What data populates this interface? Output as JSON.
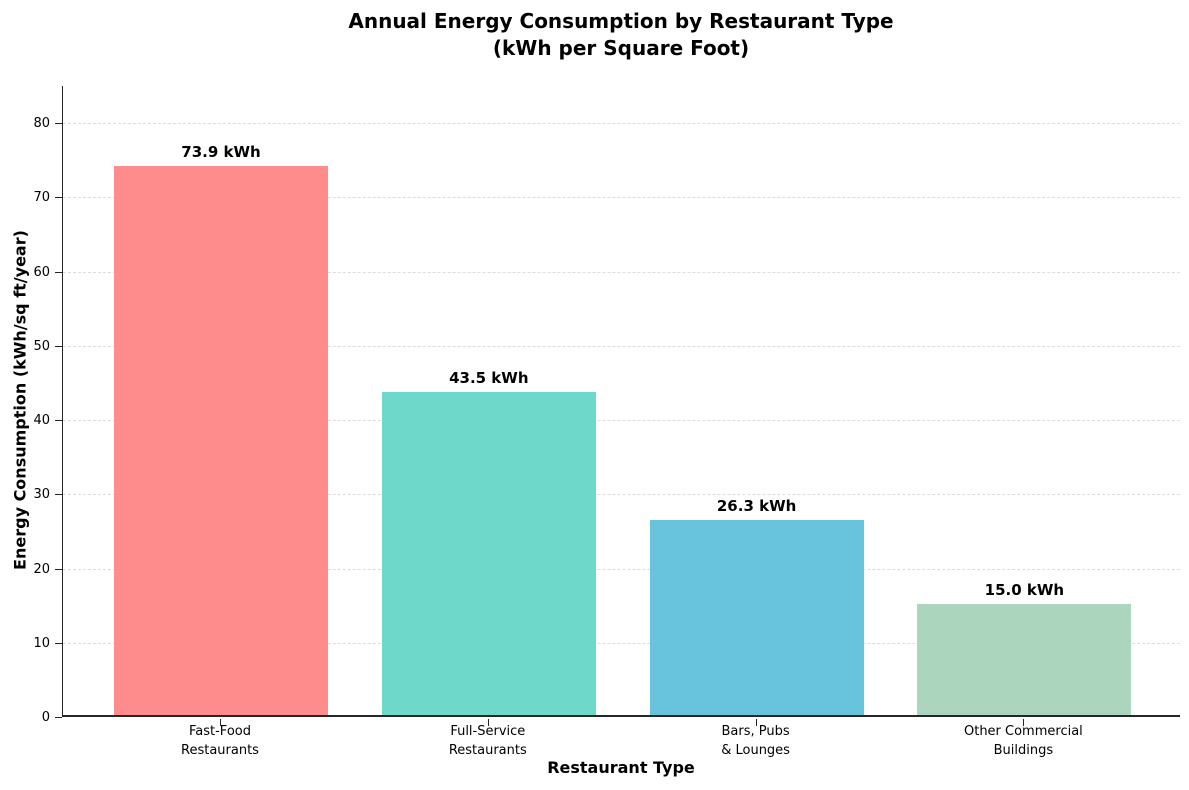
{
  "title": {
    "line1": "Annual Energy Consumption by Restaurant Type",
    "line2": "(kWh per Square Foot)"
  },
  "axes": {
    "y_label": "Energy Consumption (kWh/sq ft/year)",
    "x_label": "Restaurant Type"
  },
  "chart_data": {
    "type": "bar",
    "title": "Annual Energy Consumption by Restaurant Type (kWh per Square Foot)",
    "xlabel": "Restaurant Type",
    "ylabel": "Energy Consumption (kWh/sq ft/year)",
    "categories": [
      "Fast-Food\nRestaurants",
      "Full-Service\nRestaurants",
      "Bars, Pubs\n& Lounges",
      "Other Commercial\nBuildings"
    ],
    "values": [
      73.9,
      43.5,
      26.3,
      15.0
    ],
    "value_labels": [
      "73.9 kWh",
      "43.5 kWh",
      "26.3 kWh",
      "15.0 kWh"
    ],
    "bar_colors": [
      "#FF8C8C",
      "#6ED8CA",
      "#68C3DC",
      "#ABD5BC"
    ],
    "y_ticks": [
      0,
      10,
      20,
      30,
      40,
      50,
      60,
      70,
      80
    ],
    "ylim": [
      0,
      85
    ],
    "grid": true,
    "grid_style": "dashed",
    "legend_position": "none",
    "spine_color": "#262626",
    "grid_color": "#dcdcdc"
  }
}
